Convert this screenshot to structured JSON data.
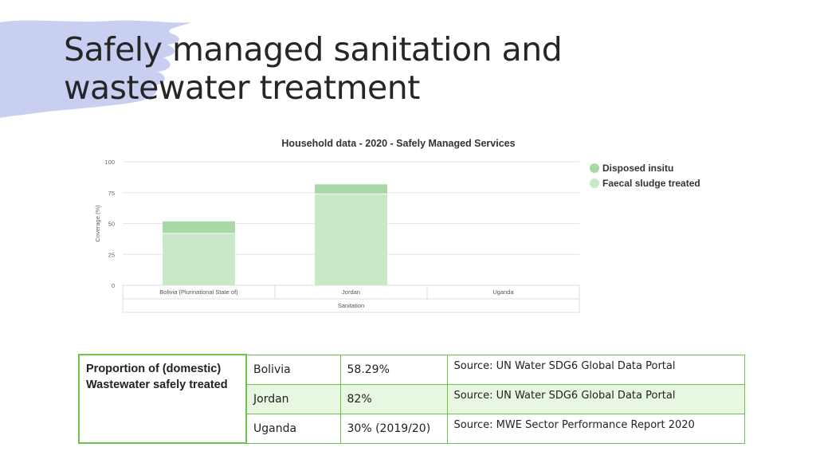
{
  "slide": {
    "title_line1": "Safely managed sanitation and",
    "title_line2": "wastewater treatment"
  },
  "colors": {
    "brush": "#c8cff1",
    "disposed_insitu": "#a7d8a6",
    "faecal_sludge_treated": "#c8e8c8",
    "table_border": "#6cc24a",
    "table_row_shade": "#e8f7e2"
  },
  "chart_data": {
    "type": "bar",
    "stacked": true,
    "title": "Household data - 2020 - Safely Managed Services",
    "ylabel": "Coverage (%)",
    "ylim": [
      0,
      100
    ],
    "yticks": [
      0,
      25,
      50,
      75,
      100
    ],
    "categories": [
      "Bolivia (Plurinational State of)",
      "Jordan",
      "Uganda"
    ],
    "group_label": "Sanitation",
    "series": [
      {
        "name": "Faecal sludge treated",
        "values": [
          42,
          74,
          0
        ],
        "color": "#c8e8c8"
      },
      {
        "name": "Disposed insitu",
        "values": [
          10,
          8,
          0
        ],
        "color": "#a7d8a6"
      }
    ],
    "legend_position": "right",
    "grid": true
  },
  "table": {
    "label": "Proportion of (domestic) Wastewater safely treated",
    "rows": [
      {
        "country": "Bolivia",
        "value": "58.29%",
        "source": "Source: UN Water SDG6 Global Data Portal"
      },
      {
        "country": "Jordan",
        "value": "82%",
        "source": "Source: UN Water SDG6 Global Data Portal"
      },
      {
        "country": "Uganda",
        "value": "30% (2019/20)",
        "source": "Source: MWE Sector Performance Report 2020"
      }
    ]
  }
}
